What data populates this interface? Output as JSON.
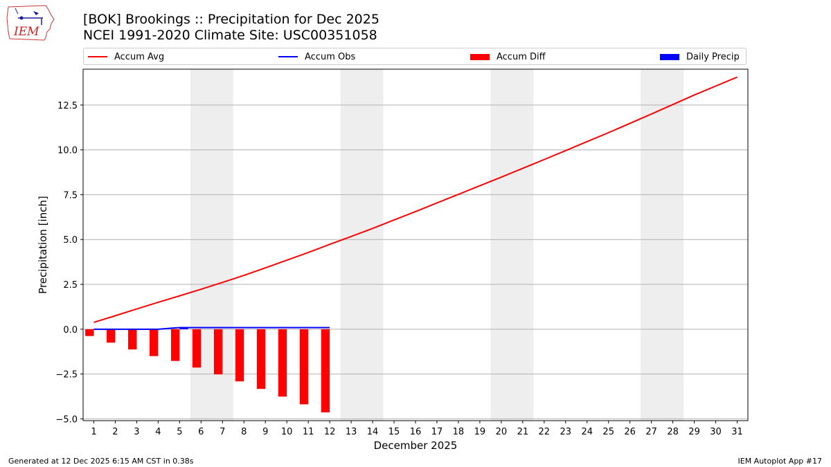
{
  "logo": {
    "text": "IEM"
  },
  "title": {
    "line1": "[BOK] Brookings :: Precipitation for Dec 2025",
    "line2": "NCEI 1991-2020 Climate Site: USC00351058"
  },
  "legend": [
    {
      "label": "Accum Avg",
      "color": "#ff0000",
      "kind": "line"
    },
    {
      "label": "Accum Obs",
      "color": "#0000ff",
      "kind": "line"
    },
    {
      "label": "Accum Diff",
      "color": "#ff0000",
      "kind": "box"
    },
    {
      "label": "Daily Precip",
      "color": "#0000ff",
      "kind": "box"
    }
  ],
  "chart_data": {
    "type": "line",
    "xlabel": "December 2025",
    "ylabel": "Precipitation [inch]",
    "x": [
      1,
      2,
      3,
      4,
      5,
      6,
      7,
      8,
      9,
      10,
      11,
      12,
      13,
      14,
      15,
      16,
      17,
      18,
      19,
      20,
      21,
      22,
      23,
      24,
      25,
      26,
      27,
      28,
      29,
      30,
      31
    ],
    "xlim": [
      0.5,
      31.5
    ],
    "ylim": [
      -5.1,
      14.5
    ],
    "yticks": [
      -5.0,
      -2.5,
      0.0,
      2.5,
      5.0,
      7.5,
      10.0,
      12.5
    ],
    "ytick_labels": [
      "−5.0",
      "−2.5",
      "0.0",
      "2.5",
      "5.0",
      "7.5",
      "10.0",
      "12.5"
    ],
    "grid": "y",
    "weekend_shading": [
      [
        5.5,
        7.5
      ],
      [
        12.5,
        14.5
      ],
      [
        19.5,
        21.5
      ],
      [
        26.5,
        28.5
      ]
    ],
    "series": [
      {
        "name": "Accum Avg",
        "kind": "line",
        "color": "#ff0000",
        "x": [
          1,
          2,
          3,
          4,
          5,
          6,
          7,
          8,
          9,
          10,
          11,
          12,
          13,
          14,
          15,
          16,
          17,
          18,
          19,
          20,
          21,
          22,
          23,
          24,
          25,
          26,
          27,
          28,
          29,
          30,
          31
        ],
        "values": [
          0.38,
          0.75,
          1.13,
          1.5,
          1.86,
          2.23,
          2.61,
          3.0,
          3.42,
          3.85,
          4.28,
          4.73,
          5.17,
          5.62,
          6.09,
          6.56,
          7.04,
          7.52,
          8.0,
          8.48,
          8.97,
          9.46,
          9.96,
          10.46,
          10.96,
          11.48,
          12.0,
          12.53,
          13.06,
          13.56,
          14.06
        ]
      },
      {
        "name": "Accum Obs",
        "kind": "line",
        "color": "#0000ff",
        "x": [
          1,
          2,
          3,
          4,
          5,
          6,
          7,
          8,
          9,
          10,
          11,
          12
        ],
        "values": [
          0.0,
          0.0,
          0.0,
          0.0,
          0.09,
          0.09,
          0.09,
          0.09,
          0.09,
          0.09,
          0.09,
          0.09
        ]
      },
      {
        "name": "Accum Diff",
        "kind": "bar",
        "color": "#ff0000",
        "x": [
          1,
          2,
          3,
          4,
          5,
          6,
          7,
          8,
          9,
          10,
          11,
          12
        ],
        "values": [
          -0.38,
          -0.75,
          -1.13,
          -1.5,
          -1.77,
          -2.14,
          -2.52,
          -2.91,
          -3.33,
          -3.76,
          -4.19,
          -4.64
        ]
      },
      {
        "name": "Daily Precip",
        "kind": "bar",
        "color": "#0000ff",
        "x": [
          1,
          2,
          3,
          4,
          5,
          6,
          7,
          8,
          9,
          10,
          11,
          12
        ],
        "values": [
          0.0,
          0.0,
          0.0,
          0.0,
          0.09,
          0.0,
          0.0,
          0.0,
          0.0,
          0.0,
          0.0,
          0.0
        ]
      }
    ]
  },
  "footer": {
    "left": "Generated at 12 Dec 2025 6:15 AM CST in 0.38s",
    "right": "IEM Autoplot App #17"
  }
}
